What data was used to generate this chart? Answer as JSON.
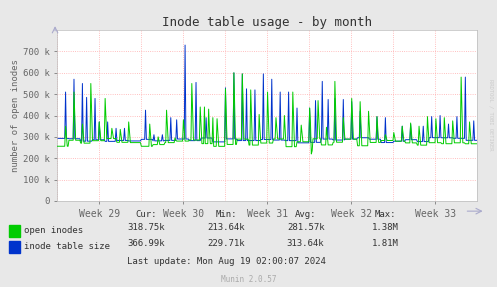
{
  "title": "Inode table usage - by month",
  "ylabel": "number of open inodes",
  "background_color": "#e8e8e8",
  "plot_bg_color": "#ffffff",
  "grid_color": "#ffaaaa",
  "title_color": "#333333",
  "tick_label_color": "#666666",
  "ylim": [
    0,
    800000
  ],
  "yticks": [
    0,
    100000,
    200000,
    300000,
    400000,
    500000,
    600000,
    700000
  ],
  "ytick_labels": [
    "0",
    "100 k",
    "200 k",
    "300 k",
    "400 k",
    "500 k",
    "600 k",
    "700 k"
  ],
  "xtick_labels": [
    "Week 29",
    "Week 30",
    "Week 31",
    "Week 32",
    "Week 33"
  ],
  "xtick_positions": [
    0.1,
    0.3,
    0.5,
    0.7,
    0.9
  ],
  "stats_header": [
    "Cur:",
    "Min:",
    "Avg:",
    "Max:"
  ],
  "stats_row1": [
    "318.75k",
    "213.64k",
    "281.57k",
    "1.38M"
  ],
  "stats_row2": [
    "366.99k",
    "229.71k",
    "313.64k",
    "1.81M"
  ],
  "last_update": "Last update: Mon Aug 19 02:00:07 2024",
  "munin_label": "Munin 2.0.57",
  "rrdtool_label": "RRDTOOL / TOBI OETIKER",
  "open_inodes_color": "#00cc00",
  "inode_table_color": "#0033cc"
}
